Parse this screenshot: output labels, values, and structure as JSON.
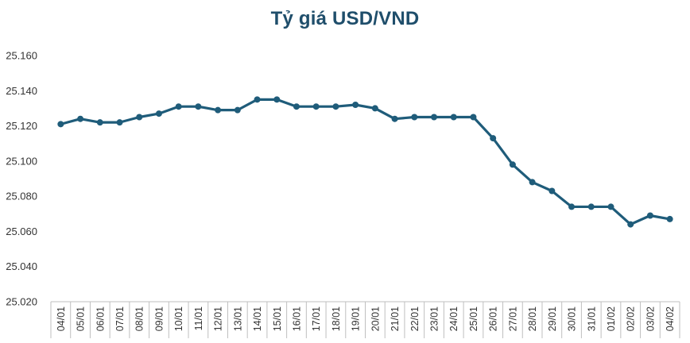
{
  "chart_data": {
    "type": "line",
    "title": "Tỷ giá USD/VND",
    "xlabel": "",
    "ylabel": "",
    "categories": [
      "04/01",
      "05/01",
      "06/01",
      "07/01",
      "08/01",
      "09/01",
      "10/01",
      "11/01",
      "12/01",
      "13/01",
      "14/01",
      "15/01",
      "16/01",
      "17/01",
      "18/01",
      "19/01",
      "20/01",
      "21/01",
      "22/01",
      "23/01",
      "24/01",
      "25/01",
      "26/01",
      "27/01",
      "28/01",
      "29/01",
      "30/01",
      "31/01",
      "01/02",
      "02/02",
      "03/02",
      "04/02"
    ],
    "series": [
      {
        "values": [
          25121,
          25124,
          25122,
          25122,
          25125,
          25127,
          25131,
          25131,
          25129,
          25129,
          25135,
          25135,
          25131,
          25131,
          25131,
          25132,
          25130,
          25124,
          25125,
          25125,
          25125,
          25125,
          25113,
          25098,
          25088,
          25083,
          25074,
          25074,
          25074,
          25064,
          25069,
          25067
        ]
      }
    ],
    "ylim": [
      25020,
      25160
    ],
    "yticks": [
      25020,
      25040,
      25060,
      25080,
      25100,
      25120,
      25140,
      25160
    ],
    "ytick_labels": [
      "25.020",
      "25.040",
      "25.060",
      "25.080",
      "25.100",
      "25.120",
      "25.140",
      "25.160"
    ],
    "grid": false,
    "legend": "none",
    "line_color": "#1f5c7a",
    "marker_color": "#1f5c7a"
  }
}
